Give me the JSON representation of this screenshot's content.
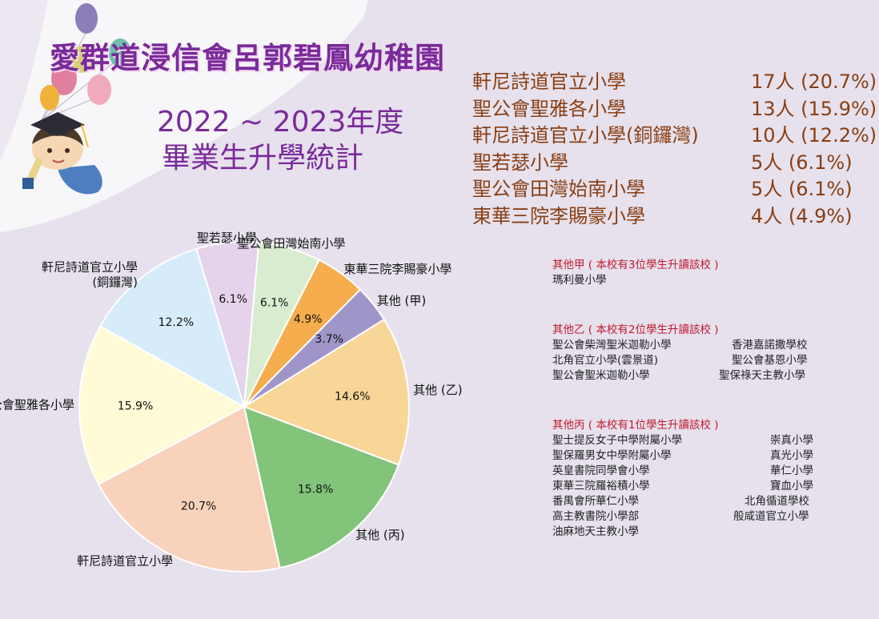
{
  "header": {
    "title": "愛群道浸信會呂郭碧鳳幼稚園",
    "year": "2022 ~ 2023年度",
    "subtitle": "畢業生升學統計"
  },
  "top_stats": [
    {
      "name": "軒尼詩道官立小學",
      "count": "17人 (20.7%)"
    },
    {
      "name": "聖公會聖雅各小學",
      "count": "13人 (15.9%)"
    },
    {
      "name": "軒尼詩道官立小學(銅鑼灣)",
      "count": "10人 (12.2%)"
    },
    {
      "name": "聖若瑟小學",
      "count": "5人  (6.1%)"
    },
    {
      "name": "聖公會田灣始南小學",
      "count": "5人  (6.1%)"
    },
    {
      "name": "東華三院李賜豪小學",
      "count": "4人  (4.9%)"
    }
  ],
  "chart_data": {
    "type": "pie",
    "slices": [
      {
        "label": "聖公會聖雅各小學",
        "value": 15.9,
        "pct": "15.9%",
        "color": "#fffbd6"
      },
      {
        "label": "軒尼詩道官立小學\n(銅鑼灣)",
        "value": 12.2,
        "pct": "12.2%",
        "color": "#d6ecfb"
      },
      {
        "label": "聖若瑟小學",
        "value": 6.1,
        "pct": "6.1%",
        "color": "#e4d3ea"
      },
      {
        "label": "聖公會田灣始南小學",
        "value": 6.1,
        "pct": "6.1%",
        "color": "#d9ecd0"
      },
      {
        "label": "東華三院李賜豪小學",
        "value": 4.9,
        "pct": "4.9%",
        "color": "#f6ad4d"
      },
      {
        "label": "其他 (甲)",
        "value": 3.7,
        "pct": "3.7%",
        "color": "#9f95c9"
      },
      {
        "label": "其他 (乙)",
        "value": 14.6,
        "pct": "14.6%",
        "color": "#f8d697"
      },
      {
        "label": "其他 (丙)",
        "value": 15.8,
        "pct": "15.8%",
        "color": "#82c47a"
      },
      {
        "label": "軒尼詩道官立小學",
        "value": 20.7,
        "pct": "20.7%",
        "color": "#f9d2bc"
      }
    ]
  },
  "others": {
    "jia": {
      "heading": "其他甲 ( 本校有3位學生升讀該校 )",
      "rows": [
        [
          "瑪利曼小學",
          ""
        ]
      ]
    },
    "yi": {
      "heading": "其他乙 ( 本校有2位學生升讀該校 )",
      "rows": [
        [
          "聖公會柴灣聖米迦勒小學",
          "香港嘉諾撒學校"
        ],
        [
          "北角官立小學(雲景道)",
          "聖公會基恩小學"
        ],
        [
          "聖公會聖米迦勒小學",
          "聖保祿天主教小學"
        ]
      ]
    },
    "bing": {
      "heading": "其他丙 ( 本校有1位學生升讀該校 )",
      "rows": [
        [
          "聖士提反女子中學附屬小學",
          "崇真小學"
        ],
        [
          "聖保羅男女中學附屬小學",
          "真光小學"
        ],
        [
          "英皇書院同學會小學",
          "華仁小學"
        ],
        [
          "東華三院羅裕積小學",
          "寶血小學"
        ],
        [
          "番禺會所華仁小學",
          "北角循道學校"
        ],
        [
          "高主教書院小學部",
          "般咸道官立小學"
        ],
        [
          "油麻地天主教小學",
          ""
        ]
      ]
    }
  }
}
